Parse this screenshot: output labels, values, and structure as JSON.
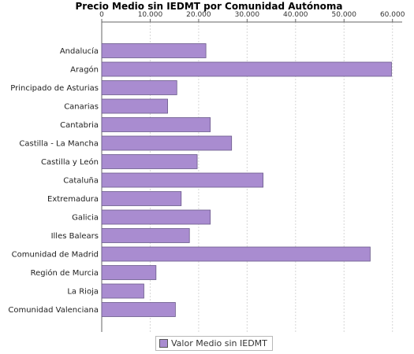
{
  "chart_data": {
    "type": "bar",
    "orientation": "horizontal",
    "title": "Precio Medio sin IEDMT por Comunidad Autónoma",
    "xlabel": "",
    "ylabel": "",
    "xlim": [
      0,
      62000
    ],
    "x_ticks": [
      0,
      10000,
      20000,
      30000,
      40000,
      50000,
      60000
    ],
    "x_tick_labels": [
      "0",
      "10.000",
      "20.000",
      "30.000",
      "40.000",
      "50.000",
      "60.000"
    ],
    "x_axis_position": "top",
    "grid": true,
    "legend_position": "bottom",
    "categories": [
      "Andalucía",
      "Aragón",
      "Principado de Asturias",
      "Canarias",
      "Cantabria",
      "Castilla - La Mancha",
      "Castilla y León",
      "Cataluña",
      "Extremadura",
      "Galicia",
      "Illes Balears",
      "Comunidad de Madrid",
      "Región de Murcia",
      "La Rioja",
      "Comunidad Valenciana"
    ],
    "series": [
      {
        "name": "Valor Medio sin IEDMT",
        "color": "#a98cd0",
        "values": [
          21500,
          59800,
          15500,
          13600,
          22400,
          26800,
          19700,
          33300,
          16400,
          22400,
          18100,
          55400,
          11200,
          8700,
          15200
        ]
      }
    ]
  },
  "colors": {
    "bar": "#a98cd0",
    "bar_stroke": "#6a5a8a",
    "grid": "#d7d7d7",
    "axis": "#666666"
  }
}
